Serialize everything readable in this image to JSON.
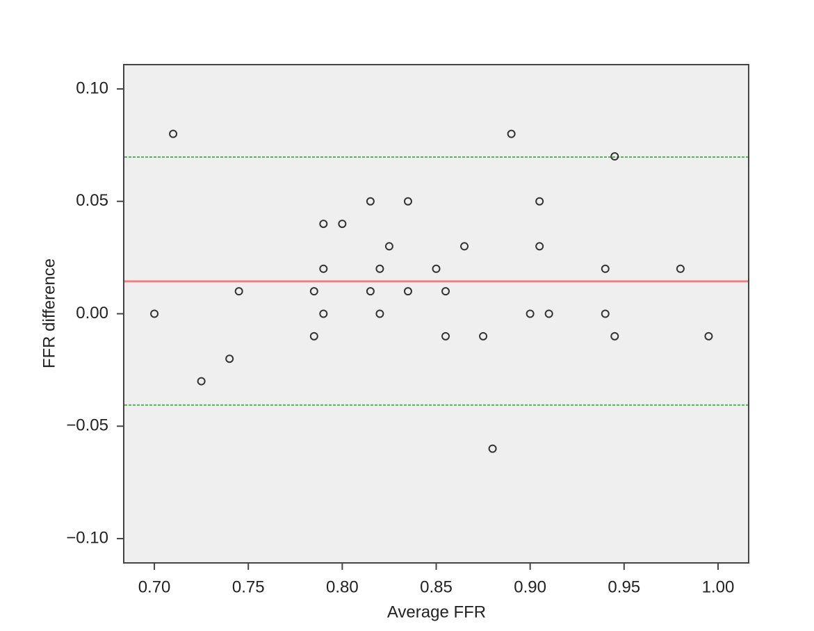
{
  "chart_data": {
    "type": "scatter",
    "xlabel": "Average FFR",
    "ylabel": "FFR difference",
    "x": [
      0.7,
      0.71,
      0.725,
      0.74,
      0.745,
      0.785,
      0.785,
      0.79,
      0.79,
      0.79,
      0.8,
      0.815,
      0.815,
      0.82,
      0.82,
      0.825,
      0.835,
      0.835,
      0.85,
      0.855,
      0.855,
      0.865,
      0.875,
      0.88,
      0.89,
      0.9,
      0.905,
      0.905,
      0.91,
      0.94,
      0.94,
      0.945,
      0.945,
      0.98,
      0.995
    ],
    "values": [
      0.0,
      0.08,
      -0.03,
      -0.02,
      0.01,
      0.01,
      -0.01,
      0.04,
      0.02,
      0.0,
      0.04,
      0.05,
      0.01,
      0.02,
      0.0,
      0.03,
      0.05,
      0.01,
      0.02,
      0.01,
      -0.01,
      0.03,
      -0.01,
      -0.06,
      0.08,
      0.0,
      0.05,
      0.03,
      0.0,
      0.02,
      0.0,
      0.07,
      -0.01,
      0.02,
      -0.01
    ],
    "color": "#333333",
    "hlines": [
      {
        "value": 0.0144,
        "color": "#f08080",
        "style": "solid"
      },
      {
        "value": 0.0697,
        "color": "#4cbb4c",
        "style": "dashed"
      },
      {
        "value": -0.0406,
        "color": "#4cbb4c",
        "style": "dashed"
      }
    ],
    "xlim": [
      0.6837,
      1.0163
    ],
    "xticks": [
      {
        "value": 0.7,
        "label": "0.70"
      },
      {
        "value": 0.75,
        "label": "0.75"
      },
      {
        "value": 0.8,
        "label": "0.80"
      },
      {
        "value": 0.85,
        "label": "0.85"
      },
      {
        "value": 0.9,
        "label": "0.90"
      },
      {
        "value": 0.95,
        "label": "0.95"
      },
      {
        "value": 1.0,
        "label": "1.00"
      }
    ],
    "ylim": [
      -0.1108,
      0.1108
    ],
    "yticks": [
      {
        "value": -0.1,
        "label": "−0.10"
      },
      {
        "value": -0.05,
        "label": "−0.05"
      },
      {
        "value": 0.0,
        "label": "0.00"
      },
      {
        "value": 0.05,
        "label": "0.05"
      },
      {
        "value": 0.1,
        "label": "0.10"
      }
    ]
  }
}
